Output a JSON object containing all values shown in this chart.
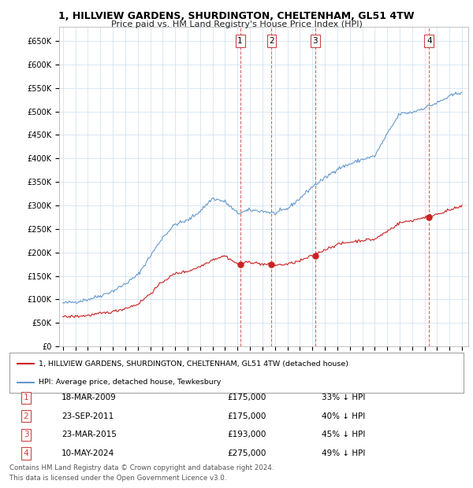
{
  "title": "1, HILLVIEW GARDENS, SHURDINGTON, CHELTENHAM, GL51 4TW",
  "subtitle": "Price paid vs. HM Land Registry's House Price Index (HPI)",
  "ylabel_ticks": [
    "£0",
    "£50K",
    "£100K",
    "£150K",
    "£200K",
    "£250K",
    "£300K",
    "£350K",
    "£400K",
    "£450K",
    "£500K",
    "£550K",
    "£600K",
    "£650K"
  ],
  "ytick_values": [
    0,
    50000,
    100000,
    150000,
    200000,
    250000,
    300000,
    350000,
    400000,
    450000,
    500000,
    550000,
    600000,
    650000
  ],
  "ylim": [
    0,
    680000
  ],
  "xlim_start": 1994.7,
  "xlim_end": 2027.5,
  "hpi_color": "#6699cc",
  "price_color": "#cc2222",
  "sale_marker_color": "#cc2222",
  "dashed_line_color": "#cc4444",
  "background_color": "#ffffff",
  "grid_color": "#ccddee",
  "transactions": [
    {
      "num": 1,
      "date_str": "18-MAR-2009",
      "date_x": 2009.21,
      "price": 175000,
      "pct": "33%"
    },
    {
      "num": 2,
      "date_str": "23-SEP-2011",
      "date_x": 2011.73,
      "price": 175000,
      "pct": "40%"
    },
    {
      "num": 3,
      "date_str": "23-MAR-2015",
      "date_x": 2015.23,
      "price": 193000,
      "pct": "45%"
    },
    {
      "num": 4,
      "date_str": "10-MAY-2024",
      "date_x": 2024.36,
      "price": 275000,
      "pct": "49%"
    }
  ],
  "hpi_anchors": [
    [
      1995.0,
      92000
    ],
    [
      1996.0,
      95000
    ],
    [
      1997.0,
      100000
    ],
    [
      1998.0,
      108000
    ],
    [
      1999.0,
      118000
    ],
    [
      2000.0,
      133000
    ],
    [
      2001.0,
      152000
    ],
    [
      2002.0,
      192000
    ],
    [
      2003.0,
      232000
    ],
    [
      2004.0,
      260000
    ],
    [
      2005.0,
      268000
    ],
    [
      2006.0,
      288000
    ],
    [
      2007.0,
      315000
    ],
    [
      2008.0,
      308000
    ],
    [
      2009.0,
      283000
    ],
    [
      2010.0,
      290000
    ],
    [
      2011.0,
      288000
    ],
    [
      2012.0,
      283000
    ],
    [
      2013.0,
      293000
    ],
    [
      2014.0,
      315000
    ],
    [
      2015.0,
      340000
    ],
    [
      2016.0,
      358000
    ],
    [
      2017.0,
      378000
    ],
    [
      2018.0,
      388000
    ],
    [
      2019.0,
      398000
    ],
    [
      2020.0,
      405000
    ],
    [
      2021.0,
      452000
    ],
    [
      2022.0,
      495000
    ],
    [
      2023.0,
      498000
    ],
    [
      2024.0,
      508000
    ],
    [
      2025.0,
      518000
    ],
    [
      2026.0,
      532000
    ],
    [
      2027.0,
      542000
    ]
  ],
  "price_anchors": [
    [
      1995.0,
      63000
    ],
    [
      1996.0,
      64000
    ],
    [
      1997.0,
      66000
    ],
    [
      1998.0,
      70000
    ],
    [
      1999.0,
      74000
    ],
    [
      2000.0,
      81000
    ],
    [
      2001.0,
      90000
    ],
    [
      2002.0,
      112000
    ],
    [
      2003.0,
      138000
    ],
    [
      2004.0,
      155000
    ],
    [
      2005.0,
      160000
    ],
    [
      2006.0,
      170000
    ],
    [
      2007.0,
      185000
    ],
    [
      2008.0,
      193000
    ],
    [
      2009.0,
      175000
    ],
    [
      2010.0,
      180000
    ],
    [
      2011.0,
      175000
    ],
    [
      2012.0,
      173000
    ],
    [
      2013.0,
      175000
    ],
    [
      2014.0,
      182000
    ],
    [
      2015.0,
      193000
    ],
    [
      2016.0,
      206000
    ],
    [
      2017.0,
      217000
    ],
    [
      2018.0,
      222000
    ],
    [
      2019.0,
      226000
    ],
    [
      2020.0,
      228000
    ],
    [
      2021.0,
      245000
    ],
    [
      2022.0,
      263000
    ],
    [
      2023.0,
      268000
    ],
    [
      2024.0,
      275000
    ],
    [
      2025.0,
      282000
    ],
    [
      2026.0,
      290000
    ],
    [
      2027.0,
      298000
    ]
  ],
  "legend_line1": "1, HILLVIEW GARDENS, SHURDINGTON, CHELTENHAM, GL51 4TW (detached house)",
  "legend_line2": "HPI: Average price, detached house, Tewkesbury",
  "footer1": "Contains HM Land Registry data © Crown copyright and database right 2024.",
  "footer2": "This data is licensed under the Open Government Licence v3.0."
}
